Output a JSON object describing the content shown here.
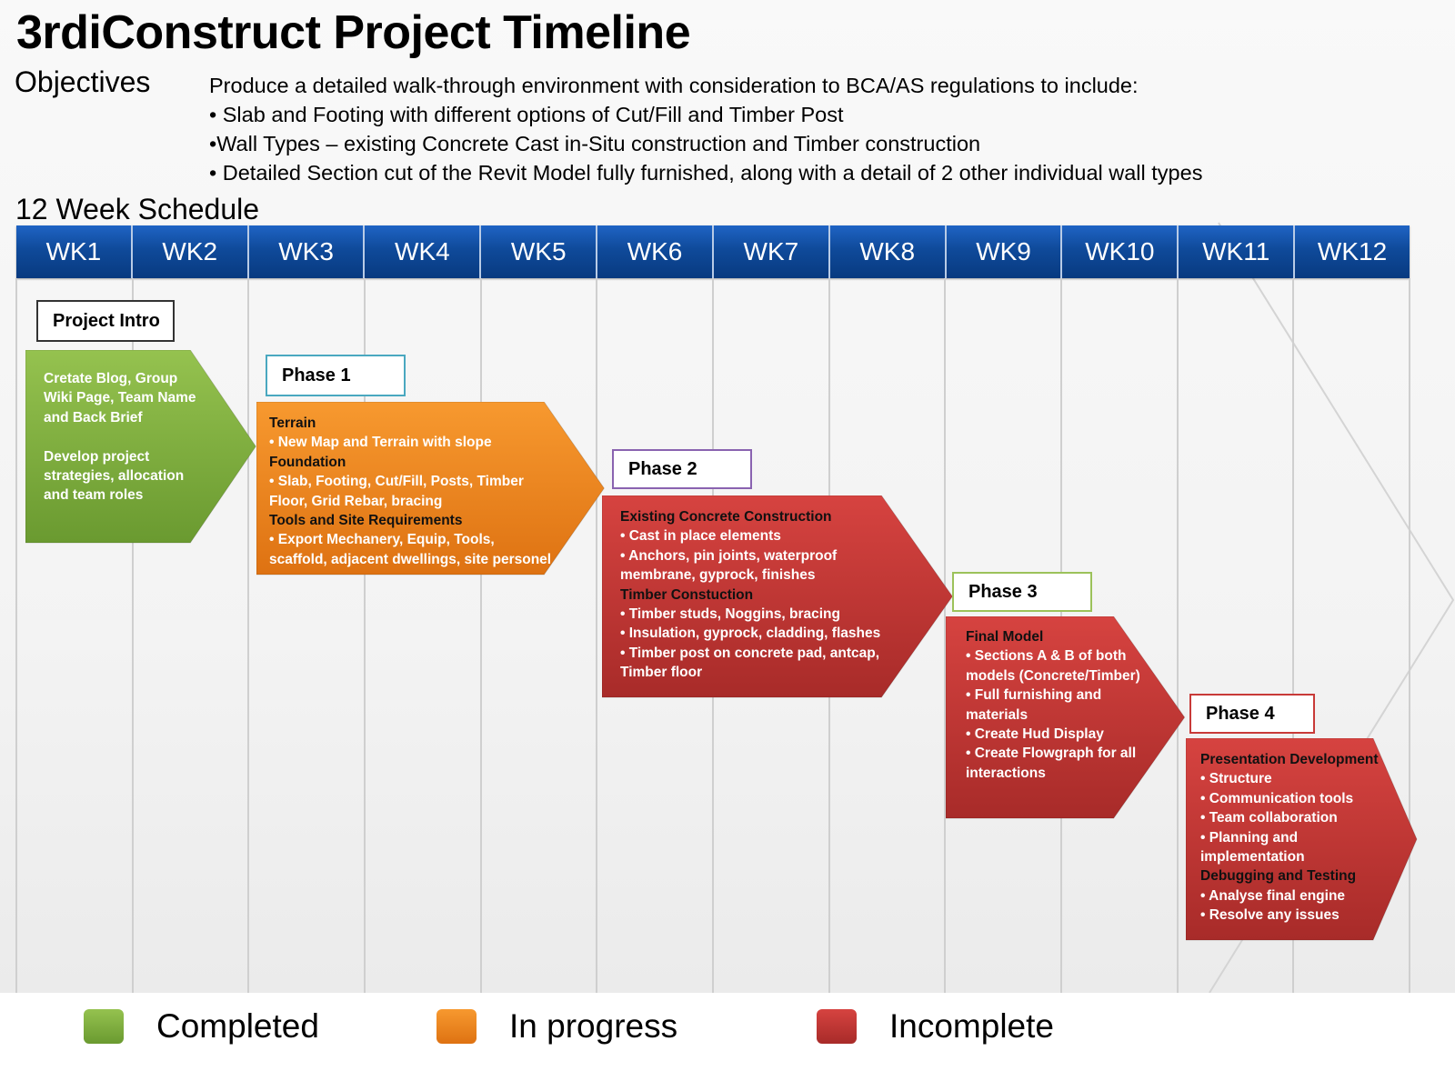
{
  "title": "3rdiConstruct Project Timeline",
  "objectives": {
    "label": "Objectives",
    "lines": [
      "Produce a detailed walk-through environment with consideration to BCA/AS regulations to include:",
      "• Slab and Footing with different options of Cut/Fill and Timber Post",
      "•Wall Types – existing Concrete Cast in-Situ construction and Timber construction",
      "• Detailed Section cut of the Revit Model fully furnished, along with a detail of 2 other individual wall types"
    ]
  },
  "schedule_label": "12 Week Schedule",
  "weeks": [
    "WK1",
    "WK2",
    "WK3",
    "WK4",
    "WK5",
    "WK6",
    "WK7",
    "WK8",
    "WK9",
    "WK10",
    "WK11",
    "WK12"
  ],
  "colors": {
    "completed": "#7fb03d",
    "in_progress": "#f08a24",
    "incomplete": "#c83a38",
    "week_bar": "#0f4a9a"
  },
  "phases": [
    {
      "label": "Project Intro",
      "status": "completed",
      "start_week": 1,
      "end_week": 2,
      "lines": [
        {
          "t": "Cretate Blog, Group",
          "h": false
        },
        {
          "t": "Wiki Page, Team Name",
          "h": false
        },
        {
          "t": "and Back Brief",
          "h": false
        },
        {
          "t": "",
          "h": false
        },
        {
          "t": "Develop project",
          "h": false
        },
        {
          "t": "strategies, allocation",
          "h": false
        },
        {
          "t": "and team roles",
          "h": false
        }
      ]
    },
    {
      "label": "Phase 1",
      "status": "in_progress",
      "start_week": 3,
      "end_week": 5,
      "lines": [
        {
          "t": "Terrain",
          "h": true
        },
        {
          "t": "• New Map and Terrain with slope",
          "h": false
        },
        {
          "t": "Foundation",
          "h": true
        },
        {
          "t": "• Slab, Footing, Cut/Fill, Posts, Timber",
          "h": false
        },
        {
          "t": "Floor, Grid Rebar,  bracing",
          "h": false
        },
        {
          "t": "Tools and  Site Requirements",
          "h": true
        },
        {
          "t": "• Export Mechanery, Equip, Tools,",
          "h": false
        },
        {
          "t": "scaffold, adjacent dwellings, site personel",
          "h": false
        }
      ]
    },
    {
      "label": "Phase 2",
      "status": "incomplete",
      "start_week": 6,
      "end_week": 8,
      "lines": [
        {
          "t": "Existing Concrete Construction",
          "h": true
        },
        {
          "t": "• Cast in place elements",
          "h": false
        },
        {
          "t": "• Anchors, pin joints, waterproof",
          "h": false
        },
        {
          "t": "membrane, gyprock, finishes",
          "h": false
        },
        {
          "t": "Timber Constuction",
          "h": true
        },
        {
          "t": "• Timber studs, Noggins, bracing",
          "h": false
        },
        {
          "t": "• Insulation, gyprock, cladding, flashes",
          "h": false
        },
        {
          "t": "• Timber post on concrete pad, antcap,",
          "h": false
        },
        {
          "t": "Timber floor",
          "h": false
        }
      ]
    },
    {
      "label": "Phase 3",
      "status": "incomplete",
      "start_week": 9,
      "end_week": 10,
      "lines": [
        {
          "t": "Final Model",
          "h": true
        },
        {
          "t": "• Sections A & B of both",
          "h": false
        },
        {
          "t": "models (Concrete/Timber)",
          "h": false
        },
        {
          "t": "• Full furnishing and",
          "h": false
        },
        {
          "t": "materials",
          "h": false
        },
        {
          "t": "•  Create Hud Display",
          "h": false
        },
        {
          "t": "• Create Flowgraph for all",
          "h": false
        },
        {
          "t": "interactions",
          "h": false
        }
      ]
    },
    {
      "label": "Phase 4",
      "status": "incomplete",
      "start_week": 11,
      "end_week": 12,
      "lines": [
        {
          "t": "Presentation Development",
          "h": true
        },
        {
          "t": "• Structure",
          "h": false
        },
        {
          "t": "• Communication tools",
          "h": false
        },
        {
          "t": "• Team collaboration",
          "h": false
        },
        {
          "t": "• Planning and",
          "h": false
        },
        {
          "t": "implementation",
          "h": false
        },
        {
          "t": "Debugging and  Testing",
          "h": true
        },
        {
          "t": "• Analyse final engine",
          "h": false
        },
        {
          "t": "• Resolve any issues",
          "h": false
        }
      ]
    }
  ],
  "legend": [
    {
      "label": "Completed",
      "status": "completed"
    },
    {
      "label": "In progress",
      "status": "in_progress"
    },
    {
      "label": "Incomplete",
      "status": "incomplete"
    }
  ]
}
